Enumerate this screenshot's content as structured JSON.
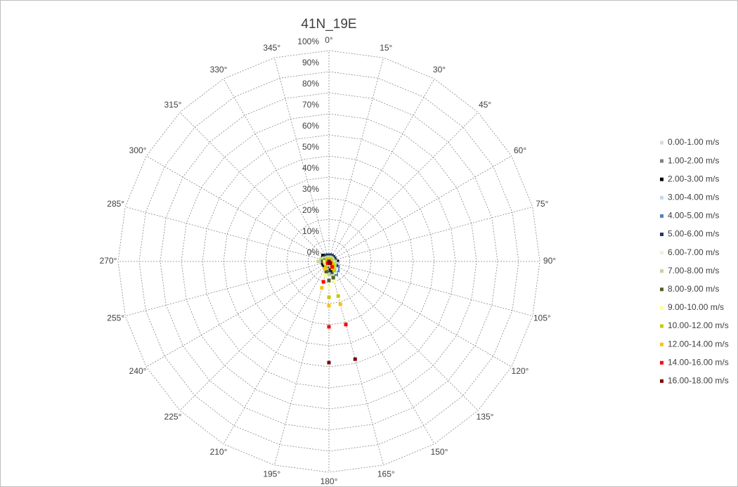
{
  "chart_data": {
    "type": "radar",
    "title": "41N_19E",
    "categories": [
      "0°",
      "15°",
      "30°",
      "45°",
      "60°",
      "75°",
      "90°",
      "105°",
      "120°",
      "135°",
      "150°",
      "165°",
      "180°",
      "195°",
      "210°",
      "225°",
      "240°",
      "255°",
      "270°",
      "285°",
      "300°",
      "315°",
      "330°",
      "345°"
    ],
    "ylim": [
      0,
      100
    ],
    "yticks": [
      {
        "value": 0,
        "label": "0%"
      },
      {
        "value": 10,
        "label": "10%"
      },
      {
        "value": 20,
        "label": "20%"
      },
      {
        "value": 30,
        "label": "30%"
      },
      {
        "value": 40,
        "label": "40%"
      },
      {
        "value": 50,
        "label": "50%"
      },
      {
        "value": 60,
        "label": "60%"
      },
      {
        "value": 70,
        "label": "70%"
      },
      {
        "value": 80,
        "label": "80%"
      },
      {
        "value": 90,
        "label": "90%"
      },
      {
        "value": 100,
        "label": "100%"
      }
    ],
    "grid": true,
    "legend": "right",
    "series": [
      {
        "name": "0.00-1.00 m/s",
        "color": "#d9d9d9",
        "values": [
          2,
          2,
          2,
          2,
          2,
          2,
          2,
          2,
          2,
          2,
          2,
          2,
          2,
          2,
          2,
          2,
          2,
          2,
          3,
          2,
          2,
          2,
          2,
          2
        ]
      },
      {
        "name": "1.00-2.00 m/s",
        "color": "#808080",
        "values": [
          3,
          3,
          3,
          3,
          3,
          3,
          3,
          4,
          4,
          4,
          4,
          5,
          4,
          3,
          3,
          3,
          3,
          3,
          4,
          3,
          3,
          3,
          3,
          3
        ]
      },
      {
        "name": "2.00-3.00 m/s",
        "color": "#000000",
        "values": [
          3,
          3,
          3,
          3,
          3,
          3,
          4,
          4,
          5,
          5,
          5,
          5,
          4,
          3,
          3,
          3,
          3,
          3,
          3,
          3,
          3,
          4,
          3,
          3
        ]
      },
      {
        "name": "3.00-4.00 m/s",
        "color": "#c6d9f1",
        "values": [
          2,
          2,
          2,
          2,
          3,
          3,
          3,
          4,
          5,
          6,
          6,
          6,
          5,
          3,
          2,
          2,
          2,
          2,
          3,
          3,
          2,
          2,
          2,
          2
        ]
      },
      {
        "name": "4.00-5.00 m/s",
        "color": "#4f81bd",
        "values": [
          2,
          2,
          2,
          2,
          3,
          3,
          3,
          3,
          5,
          6,
          7,
          6,
          5,
          3,
          2,
          2,
          2,
          2,
          3,
          3,
          2,
          2,
          2,
          2
        ]
      },
      {
        "name": "5.00-6.00 m/s",
        "color": "#1f3864",
        "values": [
          3,
          3,
          3,
          3,
          3,
          3,
          3,
          3,
          4,
          5,
          6,
          6,
          5,
          3,
          2,
          2,
          2,
          2,
          3,
          3,
          2,
          3,
          3,
          3
        ]
      },
      {
        "name": "6.00-7.00 m/s",
        "color": "#ebf1de",
        "values": [
          2,
          2,
          2,
          2,
          2,
          2,
          3,
          3,
          3,
          5,
          6,
          7,
          6,
          4,
          2,
          2,
          2,
          2,
          4,
          3,
          2,
          2,
          2,
          2
        ]
      },
      {
        "name": "7.00-8.00 m/s",
        "color": "#c3d69b",
        "values": [
          2,
          2,
          2,
          2,
          2,
          2,
          3,
          3,
          3,
          4,
          5,
          7,
          6,
          4,
          2,
          2,
          2,
          2,
          5,
          4,
          3,
          2,
          2,
          2
        ]
      },
      {
        "name": "8.00-9.00 m/s",
        "color": "#4f6228",
        "values": [
          1,
          1,
          1,
          1,
          1,
          1,
          1,
          2,
          2,
          3,
          5,
          8,
          9,
          5,
          2,
          1,
          1,
          1,
          3,
          2,
          1,
          1,
          1,
          1
        ]
      },
      {
        "name": "9.00-10.00 m/s",
        "color": "#ffff99",
        "values": [
          1,
          1,
          1,
          1,
          1,
          1,
          1,
          2,
          2,
          3,
          5,
          10,
          12,
          7,
          2,
          1,
          1,
          1,
          2,
          1,
          1,
          1,
          1,
          1
        ]
      },
      {
        "name": "10.00-12.00 m/s",
        "color": "#c8c800",
        "values": [
          1,
          1,
          1,
          1,
          1,
          1,
          1,
          1,
          2,
          3,
          5,
          17,
          17,
          10,
          3,
          1,
          1,
          1,
          1,
          1,
          1,
          1,
          1,
          1
        ]
      },
      {
        "name": "12.00-14.00 m/s",
        "color": "#ffc000",
        "values": [
          0,
          0,
          0,
          0,
          0,
          0,
          0,
          0,
          1,
          2,
          4,
          21,
          21,
          13,
          4,
          0,
          0,
          0,
          0,
          0,
          0,
          0,
          0,
          0
        ]
      },
      {
        "name": "14.00-16.00 m/s",
        "color": "#ff0000",
        "values": [
          0,
          0,
          0,
          0,
          0,
          0,
          0,
          0,
          0,
          1,
          3,
          31,
          31,
          10,
          1,
          0,
          0,
          0,
          0,
          0,
          0,
          0,
          0,
          0
        ]
      },
      {
        "name": "16.00-18.00 m/s",
        "color": "#7f0000",
        "values": [
          0,
          0,
          0,
          0,
          0,
          0,
          0,
          0,
          0,
          0,
          1,
          48,
          48,
          0,
          0,
          0,
          0,
          0,
          0,
          0,
          0,
          0,
          0,
          0
        ]
      }
    ]
  }
}
